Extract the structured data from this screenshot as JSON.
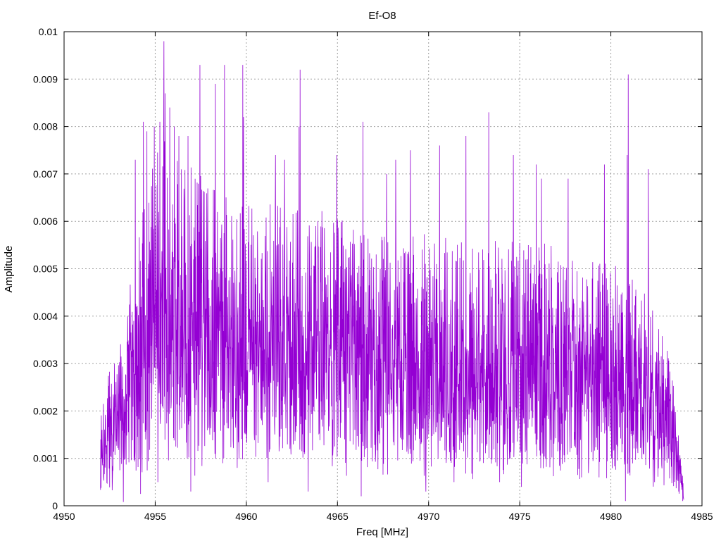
{
  "chart_data": {
    "type": "line",
    "title": "Ef-O8",
    "xlabel": "Freq [MHz]",
    "ylabel": "Amplitude",
    "xlim": [
      4950,
      4985
    ],
    "ylim": [
      0,
      0.01
    ],
    "grid": true,
    "x_ticks": [
      "4950",
      "4955",
      "4960",
      "4965",
      "4970",
      "4975",
      "4980",
      "4985"
    ],
    "y_ticks": [
      "0",
      "0.001",
      "0.002",
      "0.003",
      "0.004",
      "0.005",
      "0.006",
      "0.007",
      "0.008",
      "0.009",
      "0.01"
    ],
    "series_color": "#9400d3",
    "series": [
      {
        "x_start": 4952.0,
        "x_end": 4984.0,
        "envelope": [
          [
            4952.0,
            0.0012
          ],
          [
            4952.5,
            0.0018
          ],
          [
            4953.0,
            0.0023
          ],
          [
            4953.5,
            0.0028
          ],
          [
            4954.0,
            0.0036
          ],
          [
            4954.5,
            0.0042
          ],
          [
            4955.0,
            0.0046
          ],
          [
            4955.5,
            0.005
          ],
          [
            4956.0,
            0.0049
          ],
          [
            4957.0,
            0.0045
          ],
          [
            4958.0,
            0.0043
          ],
          [
            4959.0,
            0.0044
          ],
          [
            4960.0,
            0.0041
          ],
          [
            4962.0,
            0.004
          ],
          [
            4964.0,
            0.0039
          ],
          [
            4966.0,
            0.0037
          ],
          [
            4968.0,
            0.0037
          ],
          [
            4970.0,
            0.0036
          ],
          [
            4972.0,
            0.0035
          ],
          [
            4974.0,
            0.0035
          ],
          [
            4976.0,
            0.0035
          ],
          [
            4978.0,
            0.0034
          ],
          [
            4980.0,
            0.0032
          ],
          [
            4982.0,
            0.0029
          ],
          [
            4983.0,
            0.0022
          ],
          [
            4983.5,
            0.0015
          ],
          [
            4984.0,
            0.0003
          ]
        ],
        "peaks": [
          [
            4955.48,
            0.0098
          ],
          [
            4955.55,
            0.0087
          ],
          [
            4954.95,
            0.008
          ],
          [
            4955.25,
            0.0081
          ],
          [
            4954.35,
            0.0081
          ],
          [
            4954.55,
            0.0079
          ],
          [
            4953.9,
            0.0073
          ],
          [
            4956.05,
            0.008
          ],
          [
            4956.3,
            0.0078
          ],
          [
            4957.45,
            0.0093
          ],
          [
            4958.8,
            0.0093
          ],
          [
            4959.8,
            0.0093
          ],
          [
            4958.3,
            0.0089
          ],
          [
            4956.8,
            0.0078
          ],
          [
            4955.8,
            0.0084
          ],
          [
            4959.85,
            0.0082
          ],
          [
            4962.95,
            0.0092
          ],
          [
            4962.9,
            0.008
          ],
          [
            4966.4,
            0.0081
          ],
          [
            4973.3,
            0.0083
          ],
          [
            4980.95,
            0.0091
          ],
          [
            4980.9,
            0.0074
          ],
          [
            4972.05,
            0.0078
          ],
          [
            4969.0,
            0.0075
          ],
          [
            4961.6,
            0.0074
          ],
          [
            4964.95,
            0.0074
          ],
          [
            4968.2,
            0.0073
          ],
          [
            4970.6,
            0.0076
          ],
          [
            4974.65,
            0.0074
          ],
          [
            4979.65,
            0.0072
          ],
          [
            4982.05,
            0.0071
          ],
          [
            4976.2,
            0.0069
          ],
          [
            4977.65,
            0.0069
          ],
          [
            4967.7,
            0.007
          ],
          [
            4975.9,
            0.0072
          ],
          [
            4962.1,
            0.0073
          ]
        ],
        "dips": [
          [
            4953.25,
            8e-05
          ],
          [
            4954.2,
            0.00025
          ],
          [
            4955.15,
            0.0005
          ],
          [
            4956.95,
            0.0003
          ],
          [
            4966.3,
            0.0002
          ],
          [
            4969.85,
            0.0003
          ],
          [
            4975.1,
            0.0004
          ],
          [
            4980.8,
            0.0001
          ],
          [
            4983.95,
            0.0001
          ],
          [
            4963.4,
            0.0003
          ],
          [
            4961.2,
            0.0005
          ],
          [
            4959.5,
            0.0008
          ],
          [
            4971.4,
            0.0005
          ],
          [
            4978.4,
            0.0006
          ],
          [
            4982.4,
            0.0005
          ],
          [
            4973.9,
            0.0005
          ]
        ]
      }
    ]
  }
}
